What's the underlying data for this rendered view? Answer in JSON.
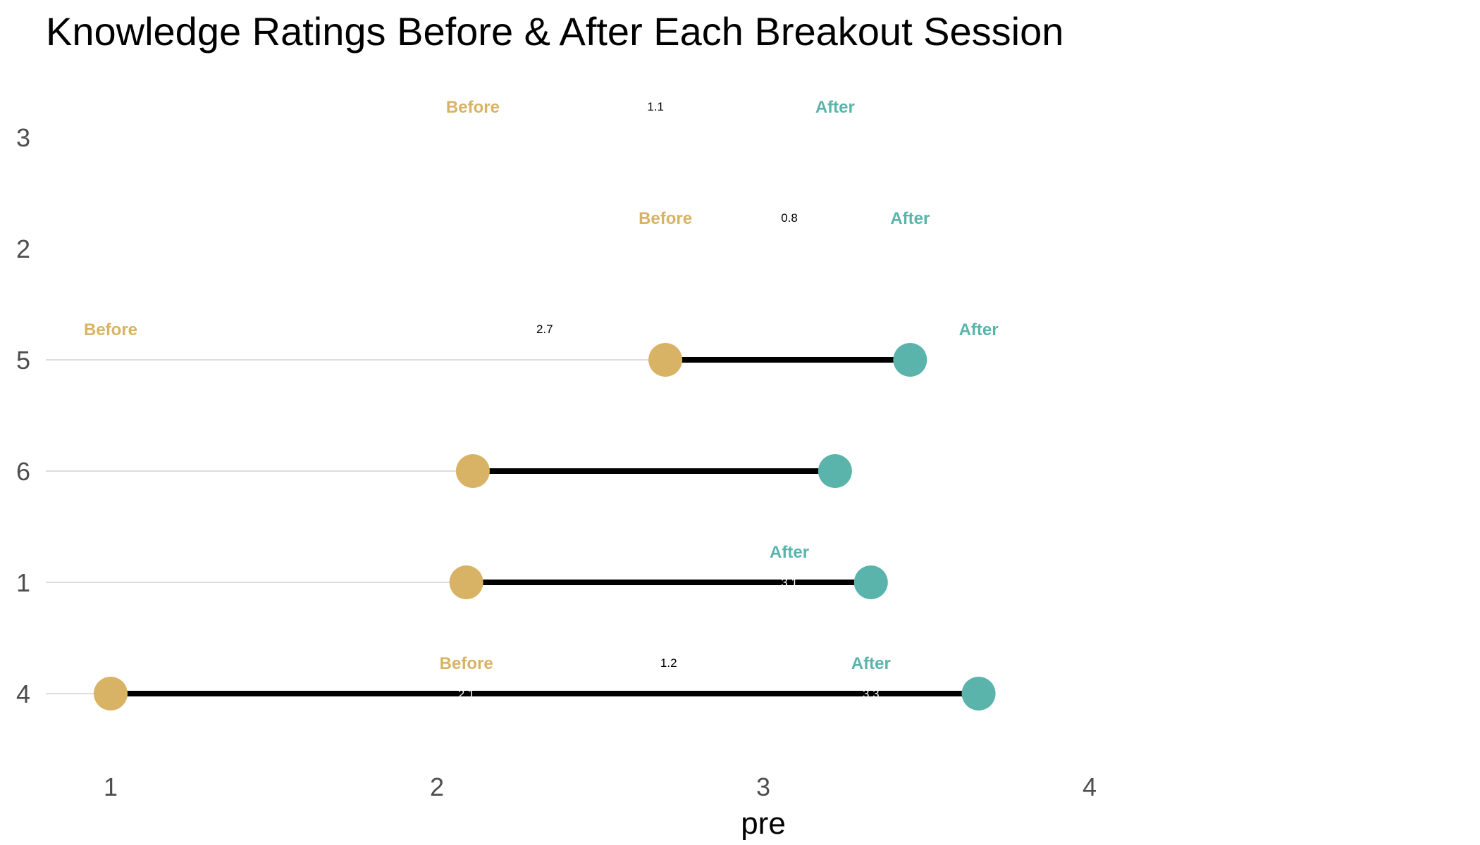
{
  "chart_data": {
    "type": "dumbbell",
    "title": "Knowledge Ratings Before & After Each Breakout Session",
    "xlabel": "pre",
    "ylabel": "",
    "xlim": [
      0.8,
      4.2
    ],
    "x_ticks": [
      "1",
      "2",
      "3",
      "4"
    ],
    "grid": "horizontal-only",
    "colors": {
      "before": "#D8B365",
      "after": "#5AB4AC",
      "segment": "#000000",
      "gridline": "#dddddd"
    },
    "categories": [
      "3",
      "2",
      "5",
      "6",
      "1",
      "4"
    ],
    "series": [
      {
        "name": "Before",
        "values": [
          null,
          null,
          2.7,
          2.1,
          2.1,
          1.0
        ]
      },
      {
        "name": "After",
        "values": [
          null,
          null,
          3.5,
          3.2,
          3.3,
          3.7
        ]
      }
    ],
    "rows": [
      {
        "category": "3",
        "before": null,
        "after": null,
        "labels": [
          {
            "kind": "before",
            "text": "Before",
            "x": 2.11
          },
          {
            "kind": "diff",
            "text": "1.1",
            "x": 2.67
          },
          {
            "kind": "after",
            "text": "After",
            "x": 3.22
          }
        ],
        "value_labels": []
      },
      {
        "category": "2",
        "before": null,
        "after": null,
        "labels": [
          {
            "kind": "before",
            "text": "Before",
            "x": 2.7
          },
          {
            "kind": "diff",
            "text": "0.8",
            "x": 3.08
          },
          {
            "kind": "after",
            "text": "After",
            "x": 3.45
          }
        ],
        "value_labels": []
      },
      {
        "category": "5",
        "before": 2.7,
        "after": 3.45,
        "labels": [
          {
            "kind": "before",
            "text": "Before",
            "x": 1.0
          },
          {
            "kind": "diff",
            "text": "2.7",
            "x": 2.33
          },
          {
            "kind": "after",
            "text": "After",
            "x": 3.66
          }
        ],
        "value_labels": []
      },
      {
        "category": "6",
        "before": 2.11,
        "after": 3.22,
        "labels": [],
        "value_labels": []
      },
      {
        "category": "1",
        "before": 2.09,
        "after": 3.33,
        "labels": [
          {
            "kind": "after",
            "text": "After",
            "x": 3.08
          }
        ],
        "value_labels": [
          {
            "text": "3.1",
            "x": 3.08
          }
        ]
      },
      {
        "category": "4",
        "before": 1.0,
        "after": 3.66,
        "labels": [
          {
            "kind": "before",
            "text": "Before",
            "x": 2.09
          },
          {
            "kind": "diff",
            "text": "1.2",
            "x": 2.71
          },
          {
            "kind": "after",
            "text": "After",
            "x": 3.33
          }
        ],
        "value_labels": [
          {
            "text": "2.1",
            "x": 2.09
          },
          {
            "text": "3.3",
            "x": 3.33
          }
        ]
      }
    ]
  }
}
